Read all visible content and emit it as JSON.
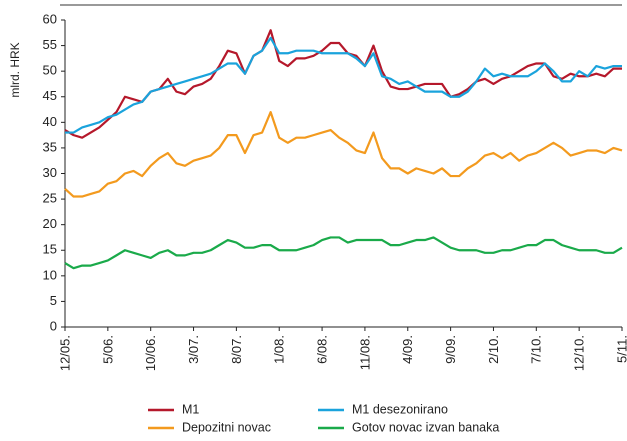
{
  "chart_data": {
    "type": "line",
    "y_label": "mlrd. HRK",
    "categories": [
      "12/05.",
      null,
      null,
      null,
      null,
      "5/06.",
      null,
      null,
      null,
      null,
      "10/06.",
      null,
      null,
      null,
      null,
      "3/07.",
      null,
      null,
      null,
      null,
      "8/07.",
      null,
      null,
      null,
      null,
      "1/08.",
      null,
      null,
      null,
      null,
      "6/08.",
      null,
      null,
      null,
      null,
      "11/08.",
      null,
      null,
      null,
      null,
      "4/09.",
      null,
      null,
      null,
      null,
      "9/09.",
      null,
      null,
      null,
      null,
      "2/10.",
      null,
      null,
      null,
      null,
      "7/10.",
      null,
      null,
      null,
      null,
      "12/10.",
      null,
      null,
      null,
      null,
      "5/11."
    ],
    "series": [
      {
        "name": "M1",
        "color": "#b5182b",
        "values": [
          38.5,
          37.5,
          37,
          38,
          39,
          40.5,
          42,
          45,
          44.5,
          44,
          46,
          46.5,
          48.5,
          46,
          45.5,
          47,
          47.5,
          48.5,
          51,
          54,
          53.5,
          49.5,
          53,
          54,
          58,
          52,
          51,
          52.5,
          52.5,
          53,
          54,
          55.5,
          55.5,
          53.5,
          53,
          51,
          55,
          50,
          47,
          46.5,
          46.5,
          47,
          47.5,
          47.5,
          47.5,
          45,
          45.5,
          46.5,
          48,
          48.5,
          47.5,
          48.5,
          49,
          50,
          51,
          51.5,
          51.5,
          49,
          48.5,
          49.5,
          49,
          49,
          49.5,
          49,
          50.5,
          50.5
        ]
      },
      {
        "name": "M1 desezonirano",
        "color": "#1aa3dc",
        "values": [
          38,
          38,
          39,
          39.5,
          40,
          41,
          41.5,
          42.5,
          43.5,
          44,
          46,
          46.5,
          47,
          47.5,
          48,
          48.5,
          49,
          49.5,
          50.5,
          51.5,
          51.5,
          49.5,
          53,
          54,
          56.5,
          53.5,
          53.5,
          54,
          54,
          54,
          53.5,
          53.5,
          53.5,
          53.5,
          52.5,
          51,
          53.5,
          49,
          48.5,
          47.5,
          48,
          47,
          46,
          46,
          46,
          45,
          45,
          46,
          48,
          50.5,
          49,
          49.5,
          49,
          49,
          49,
          50,
          51.5,
          50,
          48,
          48,
          50,
          49,
          51,
          50.5,
          51,
          51
        ]
      },
      {
        "name": "Depozitni novac",
        "color": "#f39a1e",
        "values": [
          27,
          25.5,
          25.5,
          26,
          26.5,
          28,
          28.5,
          30,
          30.5,
          29.5,
          31.5,
          33,
          34,
          32,
          31.5,
          32.5,
          33,
          33.5,
          35,
          37.5,
          37.5,
          34,
          37.5,
          38,
          42,
          37,
          36,
          37,
          37,
          37.5,
          38,
          38.5,
          37,
          36,
          34.5,
          34,
          38,
          33,
          31,
          31,
          30,
          31,
          30.5,
          30,
          31,
          29.5,
          29.5,
          31,
          32,
          33.5,
          34,
          33,
          34,
          32.5,
          33.5,
          34,
          35,
          36,
          35,
          33.5,
          34,
          34.5,
          34.5,
          34,
          35,
          34.5
        ]
      },
      {
        "name": "Gotov novac izvan banaka",
        "color": "#1aaa4a",
        "values": [
          12.5,
          11.5,
          12,
          12,
          12.5,
          13,
          14,
          15,
          14.5,
          14,
          13.5,
          14.5,
          15,
          14,
          14,
          14.5,
          14.5,
          15,
          16,
          17,
          16.5,
          15.5,
          15.5,
          16,
          16,
          15,
          15,
          15,
          15.5,
          16,
          17,
          17.5,
          17.5,
          16.5,
          17,
          17,
          17,
          17,
          16,
          16,
          16.5,
          17,
          17,
          17.5,
          16.5,
          15.5,
          15,
          15,
          15,
          14.5,
          14.5,
          15,
          15,
          15.5,
          16,
          16,
          17,
          17,
          16,
          15.5,
          15,
          15,
          15,
          14.5,
          14.5,
          15.5
        ]
      }
    ],
    "ylim": [
      0,
      60
    ],
    "yticks": [
      0,
      5,
      10,
      15,
      20,
      25,
      30,
      35,
      40,
      45,
      50,
      55,
      60
    ]
  }
}
